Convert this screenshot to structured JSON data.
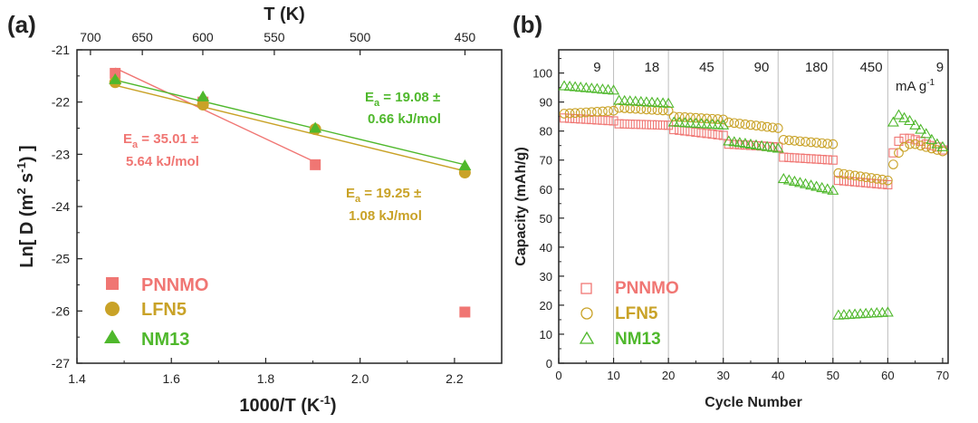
{
  "colors": {
    "pnnmo": "#f07673",
    "lfn5": "#c9a227",
    "nm13": "#4fb82c",
    "grid": "#bdbdbd",
    "axis": "#222222"
  },
  "chart_data": [
    {
      "type": "scatter",
      "panel_label": "(a)",
      "xlabel": "1000/T (K",
      "xlabel_sup": "-1",
      "xlabel_end": ")",
      "ylabel": "Ln[ D (m",
      "ylabel_sup1": "2",
      "ylabel_mid": " s",
      "ylabel_sup2": "-1",
      "ylabel_end": ") ]",
      "top_axis_label": "T (K)",
      "xlim": [
        1.4,
        2.3
      ],
      "ylim": [
        -27,
        -21
      ],
      "x_ticks": [
        "1.4",
        "1.6",
        "1.8",
        "2.0",
        "2.2"
      ],
      "y_ticks": [
        "-21",
        "-22",
        "-23",
        "-24",
        "-25",
        "-26",
        "-27"
      ],
      "top_ticks": [
        "700",
        "650",
        "600",
        "550",
        "500",
        "450"
      ],
      "series": [
        {
          "name": "PNNMO",
          "marker": "square",
          "x": [
            1.481,
            1.667,
            1.905,
            2.222
          ],
          "y": [
            -21.45,
            -22.0,
            -23.2,
            -26.02
          ],
          "fit": {
            "x": [
              1.481,
              1.905
            ],
            "y": [
              -21.35,
              -23.15
            ]
          }
        },
        {
          "name": "LFN5",
          "marker": "circle",
          "x": [
            1.481,
            1.667,
            1.905,
            2.222
          ],
          "y": [
            -21.62,
            -22.05,
            -22.52,
            -23.35
          ],
          "fit": {
            "x": [
              1.481,
              2.222
            ],
            "y": [
              -21.68,
              -23.32
            ]
          }
        },
        {
          "name": "NM13",
          "marker": "triangle",
          "x": [
            1.481,
            1.667,
            1.905,
            2.222
          ],
          "y": [
            -21.57,
            -21.9,
            -22.5,
            -23.22
          ],
          "fit": {
            "x": [
              1.481,
              2.222
            ],
            "y": [
              -21.58,
              -23.2
            ]
          }
        }
      ],
      "annotations": [
        {
          "series": "PNNMO",
          "line1_pre": "E",
          "line1_sub": "a",
          "line1_post": " = 35.01 ±",
          "line2": "5.64 kJ/mol"
        },
        {
          "series": "NM13",
          "line1_pre": "E",
          "line1_sub": "a",
          "line1_post": " = 19.08 ±",
          "line2": "0.66 kJ/mol"
        },
        {
          "series": "LFN5",
          "line1_pre": "E",
          "line1_sub": "a",
          "line1_post": " = 19.25 ±",
          "line2": "1.08 kJ/mol"
        }
      ],
      "legend": [
        "PNNMO",
        "LFN5",
        "NM13"
      ]
    },
    {
      "type": "scatter",
      "panel_label": "(b)",
      "xlabel": "Cycle Number",
      "ylabel": "Capacity (mAh/g)",
      "xlim": [
        0,
        71
      ],
      "ylim": [
        0,
        108
      ],
      "x_ticks": [
        "0",
        "10",
        "20",
        "30",
        "40",
        "50",
        "60",
        "70"
      ],
      "y_ticks": [
        "0",
        "10",
        "20",
        "30",
        "40",
        "50",
        "60",
        "70",
        "80",
        "90",
        "100"
      ],
      "rate_dividers": [
        10,
        20,
        30,
        40,
        50,
        60
      ],
      "rate_labels": [
        "9",
        "18",
        "45",
        "90",
        "180",
        "450",
        "9"
      ],
      "rate_unit_pre": "mA g",
      "rate_unit_sup": "-1",
      "legend": [
        "PNNMO",
        "LFN5",
        "NM13"
      ],
      "series": [
        {
          "name": "PNNMO",
          "marker": "open-square",
          "segments": [
            {
              "start": 1,
              "count": 10,
              "from": 84.5,
              "to": 83.5
            },
            {
              "start": 11,
              "count": 10,
              "from": 82.5,
              "to": 82.0
            },
            {
              "start": 21,
              "count": 10,
              "from": 80.5,
              "to": 78.5
            },
            {
              "start": 31,
              "count": 10,
              "from": 75.5,
              "to": 74.5
            },
            {
              "start": 41,
              "count": 10,
              "from": 71.0,
              "to": 70.0
            },
            {
              "start": 51,
              "count": 10,
              "from": 63.0,
              "to": 61.5
            },
            {
              "start": 61,
              "count": 10,
              "values": [
                72.5,
                76.5,
                77.5,
                77.5,
                77.0,
                76.5,
                75.5,
                75.0,
                74.5,
                73.5
              ]
            }
          ]
        },
        {
          "name": "LFN5",
          "marker": "open-circle",
          "segments": [
            {
              "start": 1,
              "count": 10,
              "from": 86.0,
              "to": 87.0
            },
            {
              "start": 11,
              "count": 10,
              "from": 88.0,
              "to": 87.0
            },
            {
              "start": 21,
              "count": 10,
              "from": 85.0,
              "to": 84.0
            },
            {
              "start": 31,
              "count": 10,
              "from": 83.0,
              "to": 81.0
            },
            {
              "start": 41,
              "count": 10,
              "from": 77.0,
              "to": 75.5
            },
            {
              "start": 51,
              "count": 10,
              "from": 65.5,
              "to": 63.0
            },
            {
              "start": 61,
              "count": 10,
              "values": [
                68.5,
                72.5,
                74.5,
                75.5,
                75.5,
                75.0,
                74.5,
                74.0,
                73.5,
                73.0
              ]
            }
          ]
        },
        {
          "name": "NM13",
          "marker": "open-triangle",
          "segments": [
            {
              "start": 1,
              "count": 10,
              "from": 95.5,
              "to": 94.0
            },
            {
              "start": 11,
              "count": 10,
              "from": 90.5,
              "to": 89.5
            },
            {
              "start": 21,
              "count": 10,
              "from": 83.0,
              "to": 82.0
            },
            {
              "start": 31,
              "count": 10,
              "from": 76.5,
              "to": 74.0
            },
            {
              "start": 41,
              "count": 10,
              "from": 63.5,
              "to": 59.5
            },
            {
              "start": 51,
              "count": 10,
              "from": 16.5,
              "to": 17.5
            },
            {
              "start": 61,
              "count": 10,
              "values": [
                83.0,
                85.5,
                84.5,
                83.5,
                82.0,
                80.5,
                79.0,
                77.0,
                75.5,
                74.5
              ]
            }
          ]
        }
      ]
    }
  ]
}
